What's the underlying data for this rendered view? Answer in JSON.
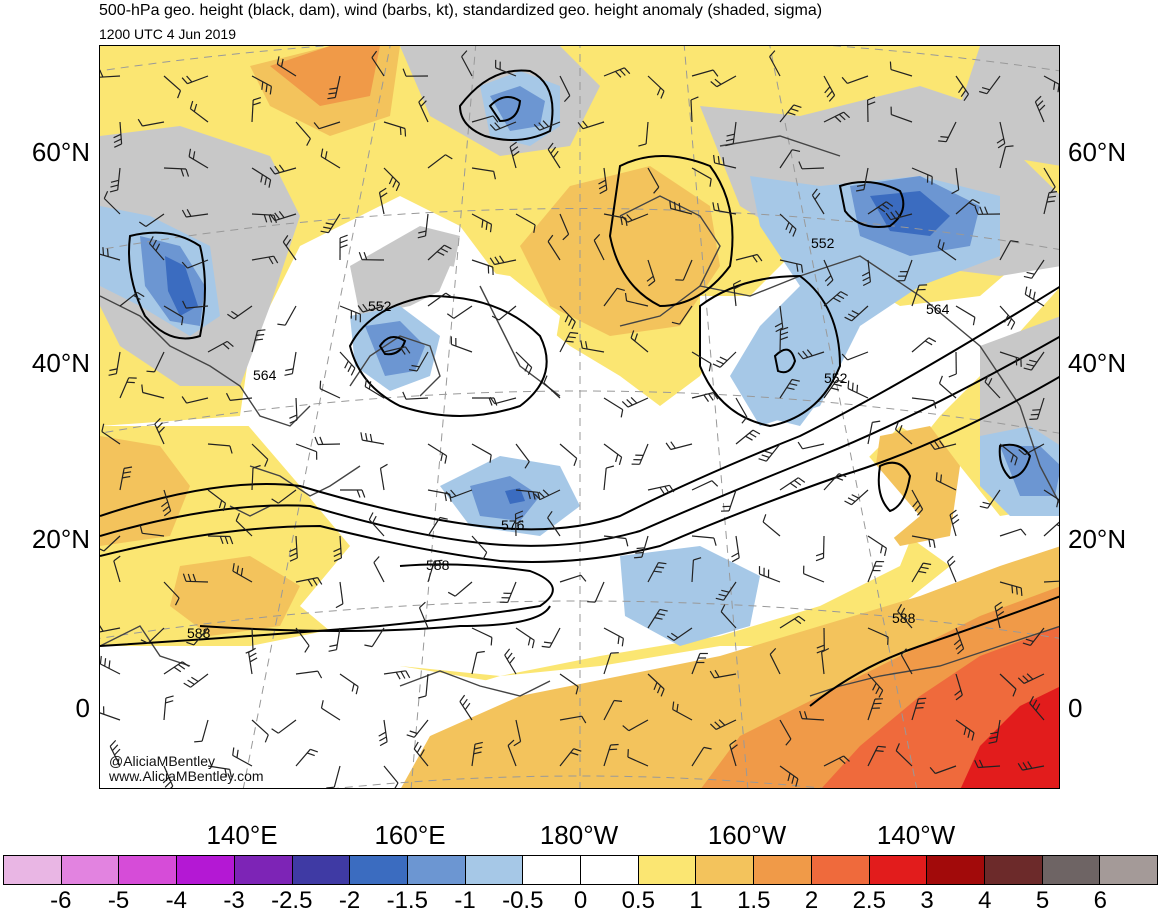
{
  "header": {
    "title": "500-hPa geo. height (black, dam), wind (barbs, kt), standardized geo. height anomaly (shaded, sigma)",
    "valid_time": "1200 UTC 4 Jun 2019"
  },
  "axes": {
    "lat_left": [
      "60°N",
      "40°N",
      "20°N",
      "0"
    ],
    "lat_right": [
      "60°N",
      "40°N",
      "20°N",
      "0"
    ],
    "lon_bottom": [
      "140°E",
      "160°E",
      "180°W",
      "160°W",
      "140°W"
    ]
  },
  "contour_labels": [
    "552",
    "552",
    "564",
    "552",
    "564",
    "576",
    "588",
    "588",
    "588"
  ],
  "credit": {
    "handle": "@AliciaMBentley",
    "website": "www.AliciaMBentley.com"
  },
  "colorbar": {
    "colors": [
      "#e9b6e4",
      "#e283e0",
      "#d64cd8",
      "#b418d4",
      "#7d24b6",
      "#3f3aa4",
      "#3b6cc0",
      "#6c96d2",
      "#a6c8e7",
      "#ffffff",
      "#ffffff",
      "#fbe672",
      "#f3c35c",
      "#f09a48",
      "#ef6a3c",
      "#e21c1c",
      "#a20a0a",
      "#6c2a2a",
      "#6e6464",
      "#a49a98"
    ],
    "tick_labels": [
      "-6",
      "-5",
      "-4",
      "-3",
      "-2.5",
      "-2",
      "-1.5",
      "-1",
      "-0.5",
      "0",
      "0.5",
      "1",
      "1.5",
      "2",
      "2.5",
      "3",
      "4",
      "5",
      "6"
    ]
  },
  "palette": {
    "neg1": "#a6c8e7",
    "neg15": "#6c96d2",
    "neg2": "#3b6cc0",
    "pos05": "#fbe672",
    "pos1": "#f3c35c",
    "pos15": "#f09a48",
    "pos2": "#ef6a3c",
    "pos25": "#e21c1c",
    "gray": "#c8c8c8"
  }
}
